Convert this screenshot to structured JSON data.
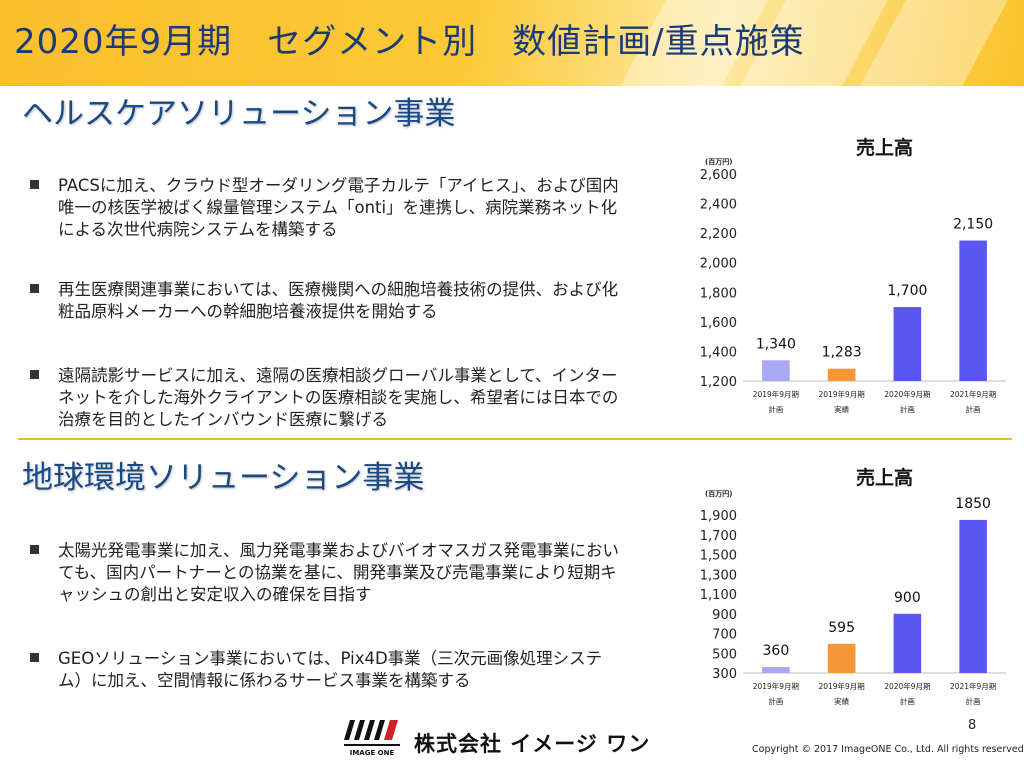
{
  "page_title": "2020年9月期　セグメント別　数値計画/重点施策",
  "sections": [
    {
      "title": "ヘルスケアソリューション事業",
      "bullets": [
        "PACSに加え、クラウド型オーダリング電子カルテ「アイヒス」、および国内唯一の核医学被ばく線量管理システム「onti」を連携し、病院業務ネット化による次世代病院システムを構築する",
        "再生医療関連事業においては、医療機関への細胞培養技術の提供、および化粧品原料メーカーへの幹細胞培養液提供を開始する",
        "遠隔読影サービスに加え、遠隔の医療相談グローバル事業として、インターネットを介した海外クライアントの医療相談を実施し、希望者には日本での治療を目的としたインバウンド医療に繋げる"
      ]
    },
    {
      "title": "地球環境ソリューション事業",
      "bullets": [
        "太陽光発電事業に加え、風力発電事業およびバイオマスガス発電事業においても、国内パートナーとの協業を基に、開発事業及び売電事業により短期キャッシュの創出と安定収入の確保を目指す",
        "GEOソリューション事業においては、Pix4D事業（三次元画像処理システム）に加え、空間情報に係わるサービス事業を構築する"
      ]
    }
  ],
  "chart_data": [
    {
      "type": "bar",
      "title": "売上高",
      "unit_label": "(百万円)",
      "categories": [
        [
          "2019年9月期",
          "計画"
        ],
        [
          "2019年9月期",
          "実績"
        ],
        [
          "2020年9月期",
          "計画"
        ],
        [
          "2021年9月期",
          "計画"
        ]
      ],
      "values": [
        1340,
        1283,
        1700,
        2150
      ],
      "value_labels": [
        "1,340",
        "1,283",
        "1,700",
        "2,150"
      ],
      "colors": [
        "#a9a8f5",
        "#f5963a",
        "#5b58f2",
        "#5b58f2"
      ],
      "ylim": [
        1200,
        2600
      ],
      "yticks": [
        1200,
        1400,
        1600,
        1800,
        2000,
        2200,
        2400,
        2600
      ],
      "ytick_labels": [
        "1,200",
        "1,400",
        "1,600",
        "1,800",
        "2,000",
        "2,200",
        "2,400",
        "2,600"
      ],
      "grid": false
    },
    {
      "type": "bar",
      "title": "売上高",
      "unit_label": "(百万円)",
      "categories": [
        [
          "2019年9月期",
          "計画"
        ],
        [
          "2019年9月期",
          "実績"
        ],
        [
          "2020年9月期",
          "計画"
        ],
        [
          "2021年9月期",
          "計画"
        ]
      ],
      "values": [
        360,
        595,
        900,
        1850
      ],
      "value_labels": [
        "360",
        "595",
        "900",
        "1850"
      ],
      "colors": [
        "#a9a8f5",
        "#f5963a",
        "#5b58f2",
        "#5b58f2"
      ],
      "ylim": [
        300,
        1900
      ],
      "yticks": [
        300,
        500,
        700,
        900,
        1100,
        1300,
        1500,
        1700,
        1900
      ],
      "ytick_labels": [
        "300",
        "500",
        "700",
        "900",
        "1,100",
        "1,300",
        "1,500",
        "1,700",
        "1,900"
      ],
      "grid": false
    }
  ],
  "footer": {
    "logo_text": "IMAGE ONE",
    "company": "株式会社 イメージ ワン",
    "page_number": "8",
    "copyright": "Copyright © 2017 ImageONE Co., Ltd. All rights reserved."
  }
}
